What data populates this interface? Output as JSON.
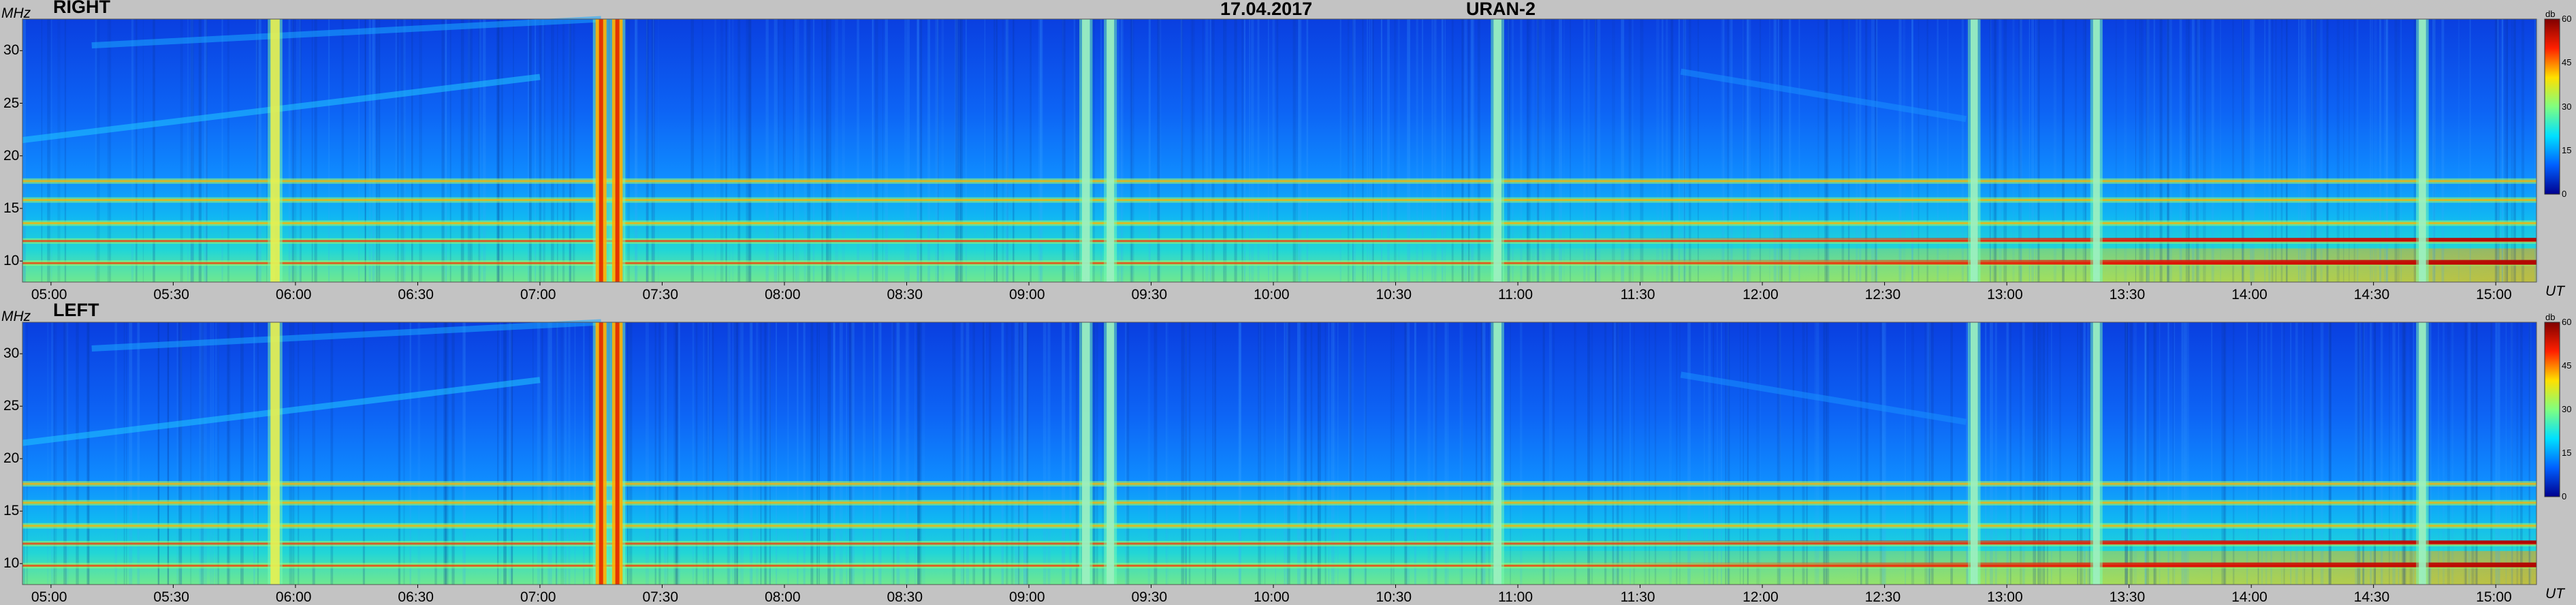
{
  "header": {
    "date": "17.04.2017",
    "instrument": "URAN-2"
  },
  "chart_data": [
    {
      "type": "heatmap",
      "panel": "RIGHT",
      "ylabel": "MHz",
      "xlabel": "UT",
      "ylim": [
        8,
        33
      ],
      "yticks": [
        "10",
        "15",
        "20",
        "25",
        "30"
      ],
      "xticks": [
        "05:00",
        "05:30",
        "06:00",
        "06:30",
        "07:00",
        "07:30",
        "08:00",
        "08:30",
        "09:00",
        "09:30",
        "10:00",
        "10:30",
        "11:00",
        "11:30",
        "12:00",
        "12:30",
        "13:00",
        "13:30",
        "14:00",
        "14:30",
        "15:00"
      ],
      "colorbar": {
        "label": "db",
        "range": [
          0,
          60
        ],
        "ticks": [
          "0",
          "15",
          "30",
          "45",
          "60"
        ]
      },
      "colormap": [
        "#00008f",
        "#0060ff",
        "#00e0ff",
        "#80ff80",
        "#ffe000",
        "#ff2000",
        "#800000"
      ]
    },
    {
      "type": "heatmap",
      "panel": "LEFT",
      "ylabel": "MHz",
      "xlabel": "UT",
      "ylim": [
        8,
        33
      ],
      "yticks": [
        "10",
        "15",
        "20",
        "25",
        "30"
      ],
      "xticks": [
        "05:00",
        "05:30",
        "06:00",
        "06:30",
        "07:00",
        "07:30",
        "08:00",
        "08:30",
        "09:00",
        "09:30",
        "10:00",
        "10:30",
        "11:00",
        "11:30",
        "12:00",
        "12:30",
        "13:00",
        "13:30",
        "14:00",
        "14:30",
        "15:00"
      ],
      "colorbar": {
        "label": "db",
        "range": [
          0,
          60
        ],
        "ticks": [
          "0",
          "15",
          "30",
          "45",
          "60"
        ]
      },
      "colormap": [
        "#00008f",
        "#0060ff",
        "#00e0ff",
        "#80ff80",
        "#ffe000",
        "#ff2000",
        "#800000"
      ]
    }
  ],
  "features": {
    "time_start": "04:53",
    "time_end": "15:10",
    "bursts": [
      {
        "t": "05:55",
        "level": 0.75
      },
      {
        "t": "07:15",
        "level": 1.0
      },
      {
        "t": "07:19",
        "level": 0.95
      },
      {
        "t": "09:14",
        "level": 0.55
      },
      {
        "t": "09:20",
        "level": 0.5
      },
      {
        "t": "10:55",
        "level": 0.55
      },
      {
        "t": "12:52",
        "level": 0.45
      },
      {
        "t": "13:22",
        "level": 0.4
      },
      {
        "t": "14:42",
        "level": 0.45
      }
    ],
    "bands": [
      {
        "f": 17.6,
        "level": 0.6
      },
      {
        "f": 15.8,
        "level": 0.65
      },
      {
        "f": 13.6,
        "level": 0.55
      },
      {
        "f": 11.9,
        "level": 0.75
      },
      {
        "f": 9.8,
        "level": 0.8
      }
    ]
  }
}
